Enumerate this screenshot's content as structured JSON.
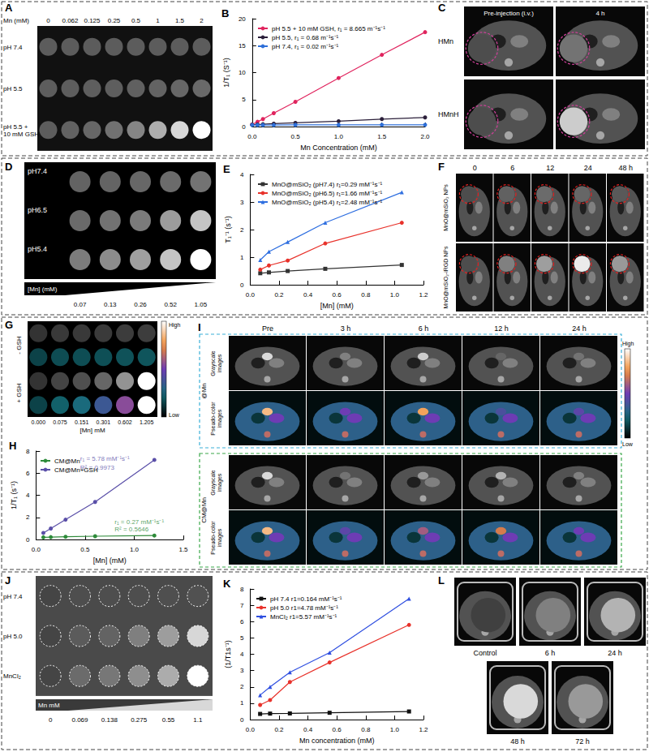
{
  "figure_panels": {
    "A": {
      "label": "A",
      "header": "Mn (mM)",
      "columns": [
        "0",
        "0.062",
        "0.125",
        "0.25",
        "0.5",
        "1",
        "1.5",
        "2"
      ],
      "rows": [
        "pH 7.4",
        "pH 5.5",
        "pH 5.5 + 10 mM GSH"
      ]
    },
    "C": {
      "label": "C",
      "columns": [
        "Pre-injection (i.v.)",
        "4 h"
      ],
      "rows": [
        "HMn",
        "HMnH"
      ]
    },
    "D": {
      "label": "D",
      "rows": [
        "pH7.4",
        "pH6.5",
        "pH5.4"
      ],
      "columns": [
        "0.07",
        "0.13",
        "0.26",
        "0.52",
        "1.05"
      ],
      "axis_label": "[Mn] (mM)"
    },
    "F": {
      "label": "F",
      "columns": [
        "0",
        "6",
        "12",
        "24",
        "48 h"
      ],
      "rows": [
        "MnO@mSiO₂ NPs",
        "MnO@mSiO₂-iRGD NPs"
      ]
    },
    "G": {
      "label": "G",
      "rows": [
        "- GSH",
        "+ GSH"
      ],
      "columns": [
        "0.000",
        "0.075",
        "0.151",
        "0.301",
        "0.602",
        "1.205"
      ],
      "axis_label": "[Mn] mM",
      "colorbar": {
        "high": "High",
        "low": "Low"
      }
    },
    "I": {
      "label": "I",
      "columns": [
        "Pre",
        "3 h",
        "6 h",
        "12 h",
        "24 h"
      ],
      "groups": [
        "@Mn",
        "CM@Mn"
      ],
      "rows": [
        "Grayscale images",
        "Pseudo-color images"
      ],
      "colorbar": {
        "high": "High",
        "low": "Low"
      }
    },
    "J": {
      "label": "J",
      "rows": [
        "pH 7.4",
        "pH 5.0",
        "MnCl₂"
      ],
      "columns": [
        "0",
        "0.069",
        "0.138",
        "0.275",
        "0.55",
        "1.1"
      ],
      "axis_label": "Mn mM"
    },
    "L": {
      "label": "L",
      "images": [
        "Control",
        "6 h",
        "24 h",
        "48 h",
        "72 h"
      ]
    }
  },
  "chart_data": [
    {
      "title": "B",
      "type": "line",
      "x_label": "Mn Concentration (mM)",
      "y_label": "1/T₁ (S⁻¹)",
      "x": [
        0,
        0.062,
        0.125,
        0.25,
        0.5,
        1,
        1.5,
        2
      ],
      "xlim": [
        0,
        2
      ],
      "xticks": [
        {
          "value": 0,
          "label": "0.0"
        },
        0.5,
        {
          "value": 1,
          "label": "1.0"
        },
        1.5,
        {
          "value": 2,
          "label": "2.0"
        }
      ],
      "ylim": [
        0,
        20
      ],
      "yticks": [
        0,
        5,
        10,
        15,
        20
      ],
      "grid": false,
      "legend": "upper left",
      "series": [
        {
          "name": "pH 5.5 + 10 mM GSH, r₁ = 8.665 m⁻¹s⁻¹",
          "color": "#e0245e",
          "marker": "circle",
          "values": [
            0.4,
            0.9,
            1.4,
            2.5,
            4.6,
            9.0,
            13.3,
            17.5
          ]
        },
        {
          "name": "pH 5.5, r₁ = 0.68 m⁻¹s⁻¹",
          "color": "#2b1f3a",
          "marker": "circle",
          "values": [
            0.35,
            0.4,
            0.45,
            0.55,
            0.7,
            1.0,
            1.4,
            1.7
          ]
        },
        {
          "name": "pH 7.4, r₁ = 0.02 m⁻¹s⁻¹",
          "color": "#2e6fd8",
          "marker": "circle",
          "values": [
            0.3,
            0.3,
            0.3,
            0.3,
            0.32,
            0.32,
            0.34,
            0.34
          ]
        }
      ]
    },
    {
      "title": "E",
      "type": "line",
      "x_label": "[Mn] (mM)",
      "y_label": "T₁⁻¹ (s⁻¹)",
      "x": [
        0.07,
        0.13,
        0.26,
        0.52,
        1.05
      ],
      "xlim": [
        0,
        1.2
      ],
      "xticks": [
        {
          "value": 0,
          "label": "0.0"
        },
        0.2,
        0.4,
        0.6,
        0.8,
        {
          "value": 1,
          "label": "1.0"
        },
        1.2
      ],
      "ylim": [
        0,
        4
      ],
      "yticks": [
        0,
        1,
        2,
        3,
        4
      ],
      "grid": false,
      "legend": "upper left",
      "series": [
        {
          "name": "MnO@mSiO₂ (pH7.4) r₁=0.29 mM⁻¹s⁻¹",
          "color": "#333333",
          "marker": "square",
          "values": [
            0.42,
            0.45,
            0.5,
            0.58,
            0.72
          ]
        },
        {
          "name": "MnO@mSiO₂ (pH6.5) r₁=1.66 mM⁻¹s⁻¹",
          "color": "#e8322b",
          "marker": "circle",
          "values": [
            0.55,
            0.7,
            0.88,
            1.5,
            2.25
          ]
        },
        {
          "name": "MnO@mSiO₂ (pH5.4) r₁=2.48 mM⁻¹s⁻¹",
          "color": "#2f6fe0",
          "marker": "triangle",
          "values": [
            0.9,
            1.2,
            1.55,
            2.25,
            3.35
          ]
        }
      ]
    },
    {
      "title": "H",
      "type": "line",
      "x_label": "[Mn] (mM)",
      "y_label": "1/T₁ (s⁻¹)",
      "x": [
        0.075,
        0.151,
        0.301,
        0.602,
        1.205
      ],
      "xlim": [
        0,
        1.5
      ],
      "xticks": [
        {
          "value": 0,
          "label": "0.0"
        },
        0.5,
        {
          "value": 1,
          "label": "1.0"
        },
        1.5
      ],
      "ylim": [
        0,
        8
      ],
      "yticks": [
        0,
        2,
        4,
        6,
        8
      ],
      "grid": false,
      "legend": "upper left",
      "series": [
        {
          "name": "CM@Mn",
          "color": "#2e8b3a",
          "marker": "circle",
          "values": [
            0.2,
            0.22,
            0.25,
            0.3,
            0.36
          ]
        },
        {
          "name": "CM@Mn+GSH",
          "color": "#5a4fa8",
          "marker": "circle",
          "values": [
            0.6,
            1.0,
            1.8,
            3.4,
            7.2
          ]
        }
      ],
      "annotations": [
        {
          "text": "r₁ = 5.78 mM⁻¹s⁻¹",
          "x": 0.45,
          "y": 7.3,
          "color": "#5a4fa8"
        },
        {
          "text": "R² = 0.9973",
          "x": 0.45,
          "y": 6.5,
          "color": "#5a4fa8"
        },
        {
          "text": "r₁ = 0.27 mM⁻¹s⁻¹",
          "x": 0.8,
          "y": 1.6,
          "color": "#2e8b3a"
        },
        {
          "text": "R² = 0.5646",
          "x": 0.8,
          "y": 0.9,
          "color": "#2e8b3a"
        }
      ]
    },
    {
      "title": "K",
      "type": "line",
      "x_label": "Mn concentration (mM)",
      "y_label": "(1/T1s⁻¹)",
      "x": [
        0.069,
        0.138,
        0.275,
        0.55,
        1.1
      ],
      "xlim": [
        0,
        1.2
      ],
      "xticks": [
        {
          "value": 0,
          "label": "0.0"
        },
        0.2,
        0.4,
        0.6,
        0.8,
        {
          "value": 1,
          "label": "1.0"
        },
        1.2
      ],
      "ylim": [
        0,
        8
      ],
      "yticks": [
        0,
        1,
        2,
        3,
        4,
        5,
        6,
        7,
        8
      ],
      "grid": false,
      "legend": "upper left",
      "series": [
        {
          "name": "pH 7.4 r1=0.164 mM⁻¹s⁻¹",
          "color": "#111111",
          "marker": "square",
          "values": [
            0.35,
            0.37,
            0.38,
            0.42,
            0.5
          ]
        },
        {
          "name": "pH 5.0 r1=4.78 mM⁻¹s⁻¹",
          "color": "#e8322b",
          "marker": "circle",
          "values": [
            0.9,
            1.2,
            2.3,
            3.5,
            5.8
          ]
        },
        {
          "name": "MnCl₂ r1=5.57 mM⁻¹s⁻¹",
          "color": "#2f4fe0",
          "marker": "triangle",
          "values": [
            1.5,
            2.0,
            2.9,
            4.1,
            7.4
          ]
        }
      ]
    }
  ]
}
